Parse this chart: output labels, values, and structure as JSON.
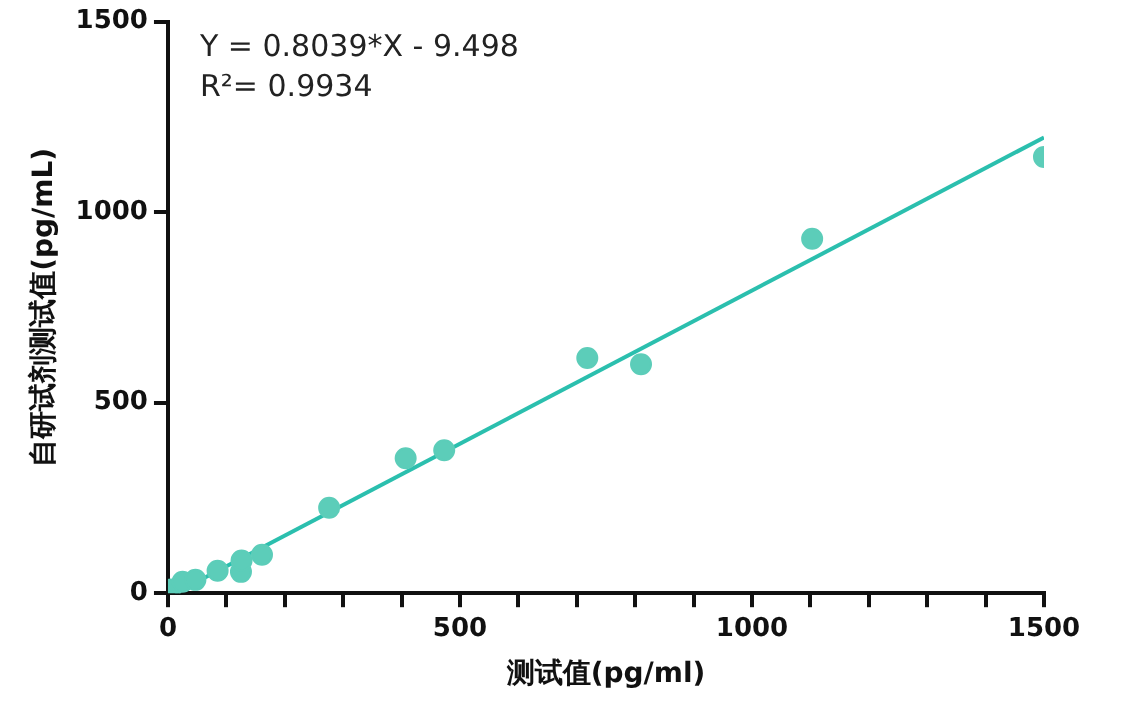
{
  "chart_data": {
    "type": "scatter",
    "xlabel": "测试值(pg/ml)",
    "ylabel": "自研试剂测试值(pg/mL)",
    "annotations": [
      "Y = 0.8039*X - 9.498",
      "R²= 0.9934"
    ],
    "xlim": [
      0,
      1500
    ],
    "ylim": [
      0,
      1500
    ],
    "xticks": [
      0,
      {
        "value": 100,
        "label": null
      },
      {
        "value": 200,
        "label": null
      },
      {
        "value": 300,
        "label": null
      },
      {
        "value": 400,
        "label": null
      },
      500,
      {
        "value": 600,
        "label": null
      },
      {
        "value": 700,
        "label": null
      },
      {
        "value": 800,
        "label": null
      },
      {
        "value": 900,
        "label": null
      },
      1000,
      {
        "value": 1100,
        "label": null
      },
      {
        "value": 1200,
        "label": null
      },
      {
        "value": 1300,
        "label": null
      },
      {
        "value": 1400,
        "label": null
      },
      1500
    ],
    "yticks": [
      0,
      500,
      1000,
      1500
    ],
    "legend": false,
    "series": [
      {
        "marker": "circle",
        "color": "#5ccdb9",
        "x": [
          5,
          25,
          47,
          85,
          125,
          126,
          161,
          276,
          407,
          473,
          718,
          810,
          1103,
          1500
        ],
        "values": [
          10,
          30,
          35,
          59,
          56,
          86,
          101,
          224,
          354,
          375,
          617,
          601,
          930,
          1145
        ]
      },
      {
        "type": "line",
        "color": "#2bbfae",
        "x": [
          12,
          1500
        ],
        "values": [
          0,
          1196
        ]
      }
    ]
  }
}
